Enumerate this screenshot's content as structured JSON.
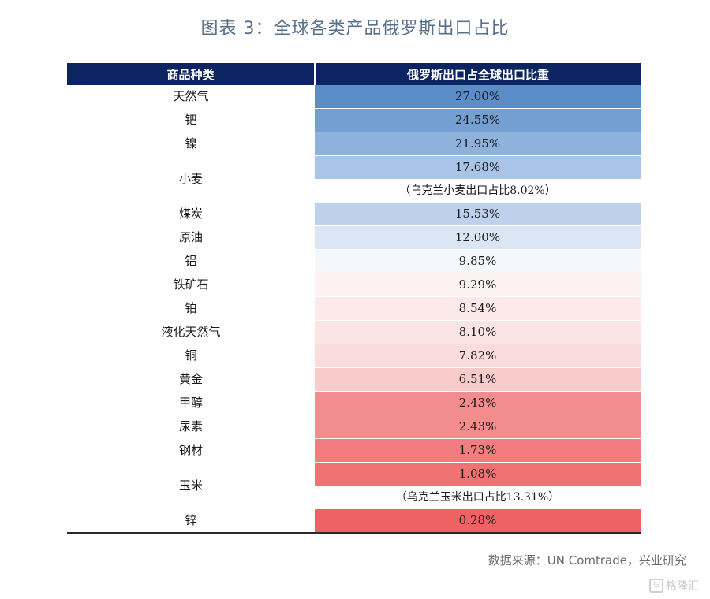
{
  "title": "图表 3：全球各类产品俄罗斯出口占比",
  "source": "数据来源：UN Comtrade，兴业研究",
  "watermark": "格隆汇",
  "chart_data": {
    "type": "table",
    "columns": [
      "商品种类",
      "俄罗斯出口占全球出口比重"
    ],
    "rows": [
      {
        "category": "天然气",
        "value": "27.00%",
        "color": "#5b8dc9"
      },
      {
        "category": "钯",
        "value": "24.55%",
        "color": "#739fd2"
      },
      {
        "category": "镍",
        "value": "21.95%",
        "color": "#8fb2dc"
      },
      {
        "category": "小麦",
        "value": "17.68%",
        "color": "#a9c4e6",
        "note": "（乌克兰小麦出口占比8.02%）"
      },
      {
        "category": "煤炭",
        "value": "15.53%",
        "color": "#bdd1ec"
      },
      {
        "category": "原油",
        "value": "12.00%",
        "color": "#dbe6f5"
      },
      {
        "category": "铝",
        "value": "9.85%",
        "color": "#f3f6fb"
      },
      {
        "category": "铁矿石",
        "value": "9.29%",
        "color": "#fcf2f2"
      },
      {
        "category": "铂",
        "value": "8.54%",
        "color": "#fce9e9"
      },
      {
        "category": "液化天然气",
        "value": "8.10%",
        "color": "#fbe4e4"
      },
      {
        "category": "铜",
        "value": "7.82%",
        "color": "#fadcdc"
      },
      {
        "category": "黄金",
        "value": "6.51%",
        "color": "#f8cbcb"
      },
      {
        "category": "甲醇",
        "value": "2.43%",
        "color": "#f28c8d"
      },
      {
        "category": "尿素",
        "value": "2.43%",
        "color": "#f28c8d"
      },
      {
        "category": "钢材",
        "value": "1.73%",
        "color": "#f27d7e"
      },
      {
        "category": "玉米",
        "value": "1.08%",
        "color": "#f07273",
        "note": "（乌克兰玉米出口占比13.31%）"
      },
      {
        "category": "锌",
        "value": "0.28%",
        "color": "#ee6263"
      }
    ]
  }
}
